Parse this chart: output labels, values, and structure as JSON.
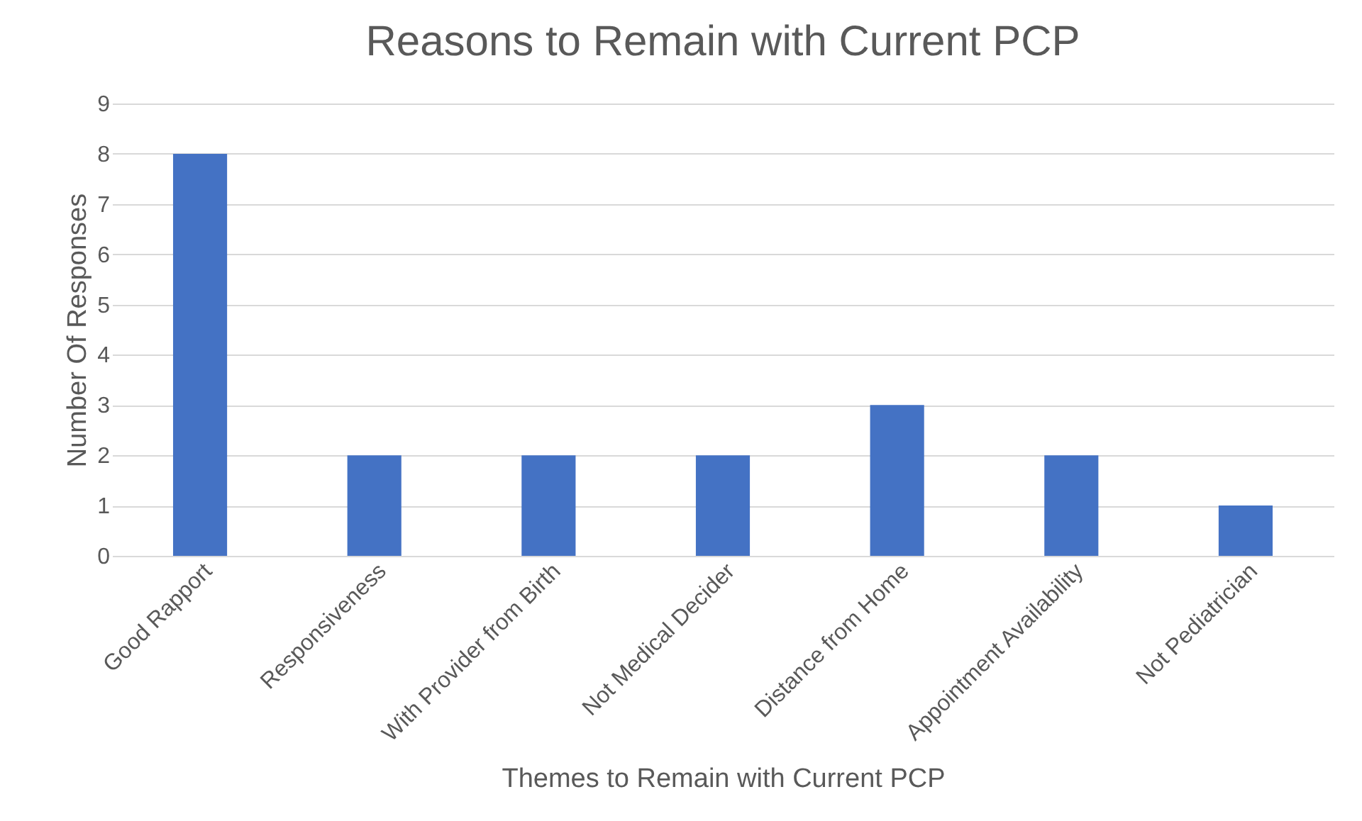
{
  "chart_data": {
    "type": "bar",
    "title": "Reasons to Remain with Current PCP",
    "xlabel": "Themes to Remain with Current PCP",
    "ylabel": "Number Of Responses",
    "categories": [
      "Good Rapport",
      "Responsiveness",
      "With Provider from Birth",
      "Not Medical Decider",
      "Distance from Home",
      "Appointment Availability",
      "Not Pediatrician"
    ],
    "values": [
      8,
      2,
      2,
      2,
      3,
      2,
      1
    ],
    "color": "#4472c4",
    "ylim": [
      0,
      9
    ],
    "yticks": [
      0,
      1,
      2,
      3,
      4,
      5,
      6,
      7,
      8,
      9
    ],
    "grid": "y"
  }
}
